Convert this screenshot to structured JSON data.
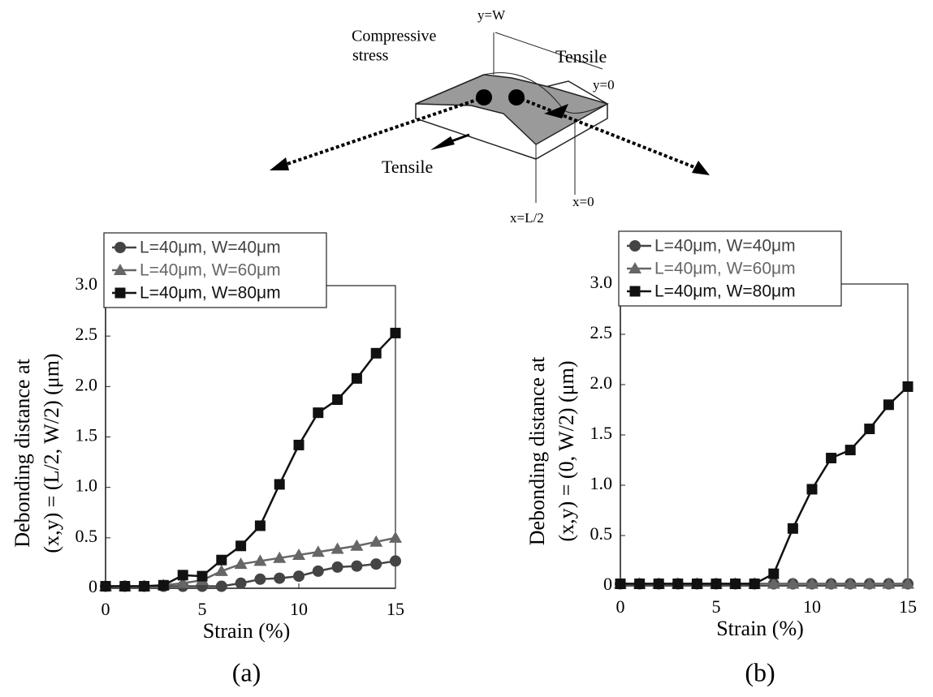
{
  "diagram": {
    "labels": [
      "y=W",
      "Compressive",
      "stress",
      "Tensile",
      "y=0",
      "Tensile",
      "x=0",
      "x=L/2"
    ]
  },
  "chart_data": [
    {
      "type": "line",
      "panel": "(a)",
      "ylabel": [
        "Debonding distance at",
        "(x,y) = (L/2, W/2) (μm)"
      ],
      "xlabel": "Strain (%)",
      "x": [
        0,
        1,
        2,
        3,
        4,
        5,
        6,
        7,
        8,
        9,
        10,
        11,
        12,
        13,
        14,
        15
      ],
      "xlim": [
        0,
        15
      ],
      "xticks": [
        0,
        5,
        10,
        15
      ],
      "ylim": [
        0,
        3
      ],
      "yticks": [
        0,
        0.5,
        {
          "value": 1,
          "label": "1.0"
        },
        1.5,
        {
          "value": 2,
          "label": "2.0"
        },
        2.5,
        {
          "value": 3,
          "label": "3.0"
        }
      ],
      "legend": "top-left",
      "series": [
        {
          "name": "L=40μm, W=40μm",
          "color": "#444444",
          "marker": "circle",
          "values": [
            0.02,
            0.02,
            0.02,
            0.02,
            0.02,
            0.02,
            0.02,
            0.05,
            0.09,
            0.1,
            0.12,
            0.17,
            0.21,
            0.22,
            0.24,
            0.27
          ]
        },
        {
          "name": "L=40μm, W=60μm",
          "color": "#666666",
          "marker": "triangle",
          "values": [
            0.02,
            0.02,
            0.02,
            0.03,
            0.05,
            0.08,
            0.17,
            0.24,
            0.27,
            0.3,
            0.33,
            0.36,
            0.39,
            0.42,
            0.46,
            0.5
          ]
        },
        {
          "name": "L=40μm, W=80μm",
          "color": "#111111",
          "marker": "square",
          "values": [
            0.02,
            0.02,
            0.02,
            0.03,
            0.13,
            0.12,
            0.28,
            0.42,
            0.62,
            1.03,
            1.42,
            1.74,
            1.87,
            2.08,
            2.33,
            2.53
          ]
        }
      ]
    },
    {
      "type": "line",
      "panel": "(b)",
      "ylabel": [
        "Debonding distance at",
        "(x,y) = (0, W/2) (μm)"
      ],
      "xlabel": "Strain (%)",
      "x": [
        0,
        1,
        2,
        3,
        4,
        5,
        6,
        7,
        8,
        9,
        10,
        11,
        12,
        13,
        14,
        15
      ],
      "xlim": [
        0,
        15
      ],
      "xticks": [
        0,
        5,
        10,
        15
      ],
      "ylim": [
        0,
        3
      ],
      "yticks": [
        0,
        0.5,
        {
          "value": 1,
          "label": "1.0"
        },
        1.5,
        {
          "value": 2,
          "label": "2.0"
        },
        2.5,
        {
          "value": 3,
          "label": "3.0"
        }
      ],
      "legend": "top-left",
      "series": [
        {
          "name": "L=40μm, W=40μm",
          "color": "#444444",
          "marker": "circle",
          "values": [
            0.02,
            0.02,
            0.02,
            0.02,
            0.02,
            0.02,
            0.02,
            0.02,
            0.02,
            0.02,
            0.02,
            0.02,
            0.02,
            0.02,
            0.02,
            0.02
          ]
        },
        {
          "name": "L=40μm, W=60μm",
          "color": "#666666",
          "marker": "triangle",
          "values": [
            0.02,
            0.02,
            0.02,
            0.02,
            0.02,
            0.02,
            0.02,
            0.02,
            0.02,
            0.02,
            0.02,
            0.02,
            0.02,
            0.02,
            0.02,
            0.02
          ]
        },
        {
          "name": "L=40μm, W=80μm",
          "color": "#111111",
          "marker": "square",
          "values": [
            0.02,
            0.02,
            0.02,
            0.02,
            0.02,
            0.02,
            0.02,
            0.02,
            0.12,
            0.57,
            0.96,
            1.27,
            1.35,
            1.56,
            1.8,
            1.98
          ]
        }
      ]
    }
  ]
}
